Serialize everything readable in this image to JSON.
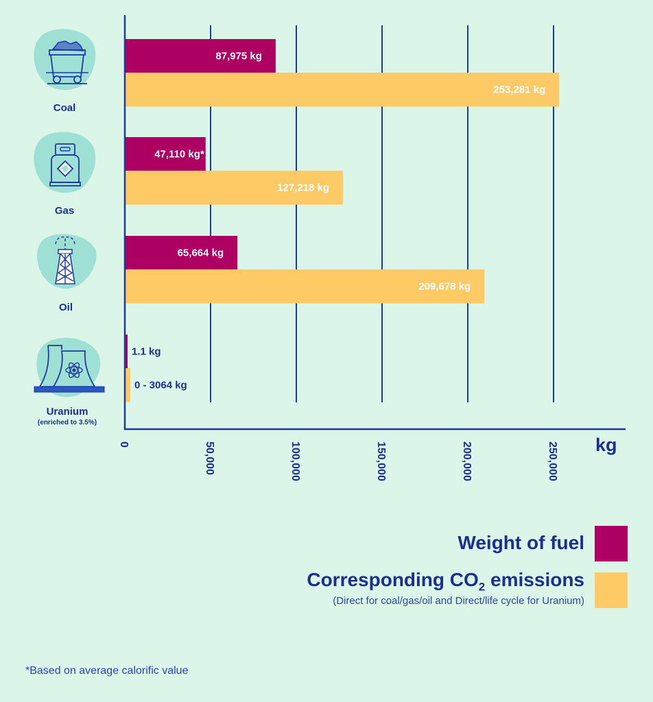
{
  "chart_data": {
    "type": "bar",
    "orientation": "horizontal",
    "title": "",
    "xlabel": "kg",
    "ylabel": "",
    "xlim": [
      0,
      290000
    ],
    "x_ticks": [
      0,
      50000,
      100000,
      150000,
      200000,
      250000
    ],
    "x_tick_labels": [
      "0",
      "50,000",
      "100,000",
      "150,000",
      "200,000",
      "250,000"
    ],
    "grid": "vertical",
    "categories": [
      "Coal",
      "Gas",
      "Oil",
      "Uranium"
    ],
    "category_sublabels": [
      "",
      "",
      "",
      "(enriched to 3.5%)"
    ],
    "category_icons": [
      "mine-cart-icon",
      "gas-cylinder-icon",
      "oil-derrick-icon",
      "nuclear-plant-icon"
    ],
    "series": [
      {
        "name": "Weight of fuel",
        "color": "#ad0062",
        "values": [
          87975,
          47110,
          65664,
          1.1
        ],
        "labels": [
          "87,975 kg",
          "47,110 kg*",
          "65,664 kg",
          "1.1 kg"
        ]
      },
      {
        "name": "Corresponding CO2 emissions",
        "color": "#fdca66",
        "values": [
          253281,
          127218,
          209678,
          3064
        ],
        "labels": [
          "253,281 kg",
          "127,218 kg",
          "209,678 kg",
          "0 - 3064 kg"
        ]
      }
    ],
    "legend": {
      "placement": "bottom-right",
      "entries": [
        {
          "text": "Weight of fuel",
          "color": "#ad0062"
        },
        {
          "text_main": "Corresponding CO",
          "text_sub": "2",
          "text_tail": " emissions",
          "note": "(Direct for coal/gas/oil and Direct/life cycle for Uranium)",
          "color": "#fdca66"
        }
      ]
    },
    "footnote": "*Based on average calorific value"
  },
  "colors": {
    "background": "#dcf5e9",
    "axis": "#1c3a9e",
    "text": "#1c2f8f",
    "blob": "#9fe0d4",
    "label_inside": "#ffffff",
    "label_outside": "#1c2f8f"
  }
}
